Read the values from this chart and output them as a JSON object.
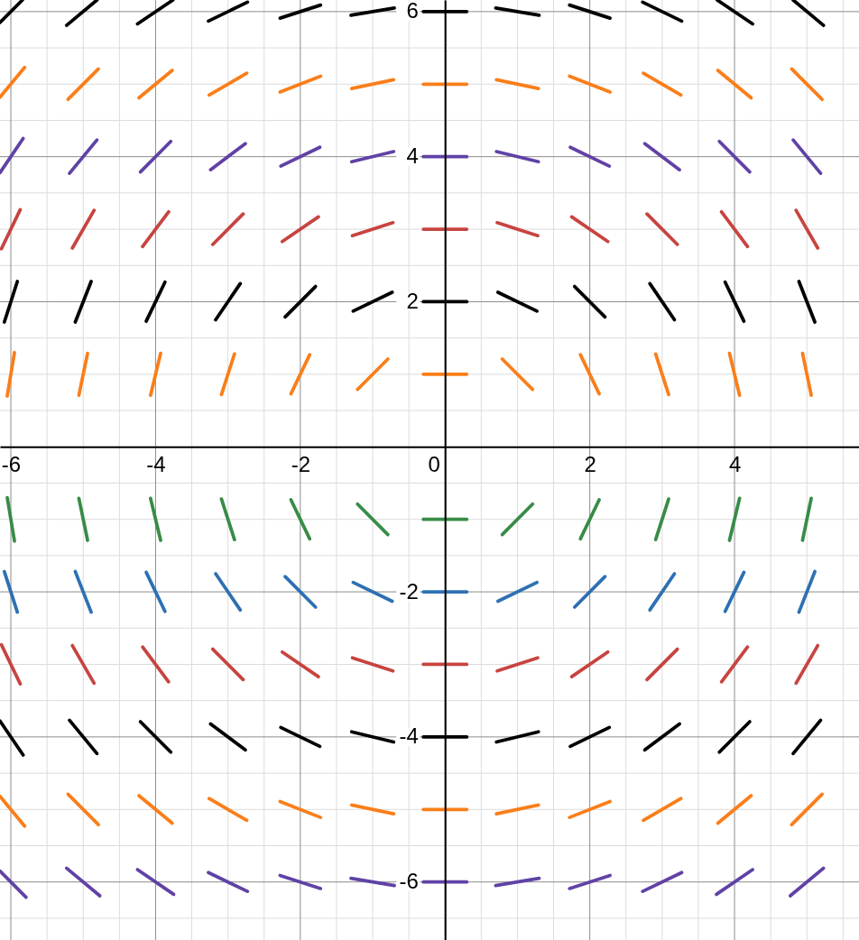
{
  "chart_data": {
    "type": "line",
    "xlim": [
      -6.15,
      5.72
    ],
    "ylim": [
      -6.8,
      6.16
    ],
    "xticks": [
      -6,
      -4,
      -2,
      0,
      2,
      4
    ],
    "yticks": [
      -6,
      -4,
      -2,
      2,
      4,
      6
    ],
    "grid": true,
    "series": [
      {
        "color": "#000000",
        "x": [
          -6.15,
          -5.84
        ],
        "values": [
          5.85,
          6.16
        ]
      },
      {
        "color": "#000000",
        "x": [
          -5.23,
          -4.81
        ],
        "values": [
          5.81,
          6.16
        ]
      },
      {
        "color": "#000000",
        "x": [
          -4.25,
          -3.76
        ],
        "values": [
          5.83,
          6.16
        ]
      },
      {
        "color": "#000000",
        "x": [
          -3.27,
          -2.73
        ],
        "values": [
          5.87,
          6.13
        ]
      },
      {
        "color": "#000000",
        "x": [
          -2.28,
          -1.72
        ],
        "values": [
          5.91,
          6.09
        ]
      },
      {
        "color": "#000000",
        "x": [
          -1.3,
          -0.7
        ],
        "values": [
          5.95,
          6.05
        ]
      },
      {
        "color": "#000000",
        "x": [
          -0.3,
          0.3
        ],
        "values": [
          6,
          6
        ]
      },
      {
        "color": "#000000",
        "x": [
          0.7,
          1.3
        ],
        "values": [
          6.05,
          5.95
        ]
      },
      {
        "color": "#000000",
        "x": [
          1.72,
          2.28
        ],
        "values": [
          6.09,
          5.91
        ]
      },
      {
        "color": "#000000",
        "x": [
          2.73,
          3.27
        ],
        "values": [
          6.13,
          5.87
        ]
      },
      {
        "color": "#000000",
        "x": [
          3.76,
          4.25
        ],
        "values": [
          6.16,
          5.83
        ]
      },
      {
        "color": "#000000",
        "x": [
          4.81,
          5.23
        ],
        "values": [
          6.16,
          5.81
        ]
      },
      {
        "color": "#fa7e19",
        "x": [
          -6.15,
          -5.81
        ],
        "values": [
          4.82,
          5.23
        ]
      },
      {
        "color": "#fa7e19",
        "x": [
          -5.21,
          -4.79
        ],
        "values": [
          4.79,
          5.21
        ]
      },
      {
        "color": "#fa7e19",
        "x": [
          -4.23,
          -3.77
        ],
        "values": [
          4.81,
          5.19
        ]
      },
      {
        "color": "#fa7e19",
        "x": [
          -3.26,
          -2.74
        ],
        "values": [
          4.85,
          5.15
        ]
      },
      {
        "color": "#fa7e19",
        "x": [
          -2.28,
          -1.72
        ],
        "values": [
          4.89,
          5.11
        ]
      },
      {
        "color": "#fa7e19",
        "x": [
          -1.29,
          -0.71
        ],
        "values": [
          4.94,
          5.06
        ]
      },
      {
        "color": "#fa7e19",
        "x": [
          -0.3,
          0.3
        ],
        "values": [
          5,
          5
        ]
      },
      {
        "color": "#fa7e19",
        "x": [
          0.71,
          1.29
        ],
        "values": [
          5.06,
          4.94
        ]
      },
      {
        "color": "#fa7e19",
        "x": [
          1.72,
          2.28
        ],
        "values": [
          5.11,
          4.89
        ]
      },
      {
        "color": "#fa7e19",
        "x": [
          2.74,
          3.26
        ],
        "values": [
          5.15,
          4.85
        ]
      },
      {
        "color": "#fa7e19",
        "x": [
          3.77,
          4.23
        ],
        "values": [
          5.19,
          4.81
        ]
      },
      {
        "color": "#fa7e19",
        "x": [
          4.79,
          5.21
        ],
        "values": [
          5.21,
          4.79
        ]
      },
      {
        "color": "#6042a6",
        "x": [
          -6.15,
          -5.83
        ],
        "values": [
          3.78,
          4.25
        ]
      },
      {
        "color": "#6042a6",
        "x": [
          -5.19,
          -4.81
        ],
        "values": [
          3.77,
          4.23
        ]
      },
      {
        "color": "#6042a6",
        "x": [
          -4.21,
          -3.79
        ],
        "values": [
          3.79,
          4.21
        ]
      },
      {
        "color": "#6042a6",
        "x": [
          -3.24,
          -2.76
        ],
        "values": [
          3.82,
          4.18
        ]
      },
      {
        "color": "#6042a6",
        "x": [
          -2.27,
          -1.73
        ],
        "values": [
          3.87,
          4.13
        ]
      },
      {
        "color": "#6042a6",
        "x": [
          -1.29,
          -0.71
        ],
        "values": [
          3.93,
          4.07
        ]
      },
      {
        "color": "#6042a6",
        "x": [
          -0.3,
          0.3
        ],
        "values": [
          4,
          4
        ]
      },
      {
        "color": "#6042a6",
        "x": [
          0.71,
          1.29
        ],
        "values": [
          4.07,
          3.93
        ]
      },
      {
        "color": "#6042a6",
        "x": [
          1.73,
          2.27
        ],
        "values": [
          4.13,
          3.87
        ]
      },
      {
        "color": "#6042a6",
        "x": [
          2.76,
          3.24
        ],
        "values": [
          4.18,
          3.82
        ]
      },
      {
        "color": "#6042a6",
        "x": [
          3.79,
          4.21
        ],
        "values": [
          4.21,
          3.79
        ]
      },
      {
        "color": "#6042a6",
        "x": [
          4.81,
          5.19
        ],
        "values": [
          4.23,
          3.77
        ]
      },
      {
        "color": "#c74440",
        "x": [
          -6.13,
          -5.87
        ],
        "values": [
          2.73,
          3.27
        ]
      },
      {
        "color": "#c74440",
        "x": [
          -5.15,
          -4.85
        ],
        "values": [
          2.74,
          3.26
        ]
      },
      {
        "color": "#c74440",
        "x": [
          -4.18,
          -3.82
        ],
        "values": [
          2.76,
          3.24
        ]
      },
      {
        "color": "#c74440",
        "x": [
          -3.21,
          -2.79
        ],
        "values": [
          2.79,
          3.21
        ]
      },
      {
        "color": "#c74440",
        "x": [
          -2.25,
          -1.75
        ],
        "values": [
          2.83,
          3.17
        ]
      },
      {
        "color": "#c74440",
        "x": [
          -1.28,
          -0.72
        ],
        "values": [
          2.91,
          3.09
        ]
      },
      {
        "color": "#c74440",
        "x": [
          -0.3,
          0.3
        ],
        "values": [
          3,
          3
        ]
      },
      {
        "color": "#c74440",
        "x": [
          0.72,
          1.28
        ],
        "values": [
          3.09,
          2.91
        ]
      },
      {
        "color": "#c74440",
        "x": [
          1.75,
          2.25
        ],
        "values": [
          3.17,
          2.83
        ]
      },
      {
        "color": "#c74440",
        "x": [
          2.79,
          3.21
        ],
        "values": [
          3.21,
          2.79
        ]
      },
      {
        "color": "#c74440",
        "x": [
          3.82,
          4.18
        ],
        "values": [
          3.24,
          2.76
        ]
      },
      {
        "color": "#c74440",
        "x": [
          4.85,
          5.15
        ],
        "values": [
          3.26,
          2.74
        ]
      },
      {
        "color": "#000000",
        "x": [
          -6.09,
          -5.91
        ],
        "values": [
          1.72,
          2.28
        ]
      },
      {
        "color": "#000000",
        "x": [
          -5.11,
          -4.89
        ],
        "values": [
          1.72,
          2.28
        ]
      },
      {
        "color": "#000000",
        "x": [
          -4.13,
          -3.87
        ],
        "values": [
          1.73,
          2.27
        ]
      },
      {
        "color": "#000000",
        "x": [
          -3.17,
          -2.83
        ],
        "values": [
          1.75,
          2.25
        ]
      },
      {
        "color": "#000000",
        "x": [
          -2.21,
          -1.79
        ],
        "values": [
          1.79,
          2.21
        ]
      },
      {
        "color": "#000000",
        "x": [
          -1.27,
          -0.73
        ],
        "values": [
          1.87,
          2.13
        ]
      },
      {
        "color": "#000000",
        "x": [
          -0.3,
          0.3
        ],
        "values": [
          2,
          2
        ]
      },
      {
        "color": "#000000",
        "x": [
          0.73,
          1.27
        ],
        "values": [
          2.13,
          1.87
        ]
      },
      {
        "color": "#000000",
        "x": [
          1.79,
          2.21
        ],
        "values": [
          2.21,
          1.79
        ]
      },
      {
        "color": "#000000",
        "x": [
          2.83,
          3.17
        ],
        "values": [
          2.25,
          1.75
        ]
      },
      {
        "color": "#000000",
        "x": [
          3.87,
          4.13
        ],
        "values": [
          2.27,
          1.73
        ]
      },
      {
        "color": "#000000",
        "x": [
          4.89,
          5.11
        ],
        "values": [
          2.28,
          1.72
        ]
      },
      {
        "color": "#fa7e19",
        "x": [
          -6.05,
          -5.95
        ],
        "values": [
          0.7,
          1.3
        ]
      },
      {
        "color": "#fa7e19",
        "x": [
          -5.06,
          -4.94
        ],
        "values": [
          0.71,
          1.29
        ]
      },
      {
        "color": "#fa7e19",
        "x": [
          -4.07,
          -3.93
        ],
        "values": [
          0.71,
          1.29
        ]
      },
      {
        "color": "#fa7e19",
        "x": [
          -3.09,
          -2.91
        ],
        "values": [
          0.72,
          1.28
        ]
      },
      {
        "color": "#fa7e19",
        "x": [
          -2.13,
          -1.87
        ],
        "values": [
          0.73,
          1.27
        ]
      },
      {
        "color": "#fa7e19",
        "x": [
          -1.21,
          -0.79
        ],
        "values": [
          0.79,
          1.21
        ]
      },
      {
        "color": "#fa7e19",
        "x": [
          -0.3,
          0.3
        ],
        "values": [
          1,
          1
        ]
      },
      {
        "color": "#fa7e19",
        "x": [
          0.79,
          1.21
        ],
        "values": [
          1.21,
          0.79
        ]
      },
      {
        "color": "#fa7e19",
        "x": [
          1.87,
          2.13
        ],
        "values": [
          1.27,
          0.73
        ]
      },
      {
        "color": "#fa7e19",
        "x": [
          2.91,
          3.09
        ],
        "values": [
          1.28,
          0.72
        ]
      },
      {
        "color": "#fa7e19",
        "x": [
          3.93,
          4.07
        ],
        "values": [
          1.29,
          0.71
        ]
      },
      {
        "color": "#fa7e19",
        "x": [
          4.94,
          5.06
        ],
        "values": [
          1.29,
          0.71
        ]
      },
      {
        "color": "#388c46",
        "x": [
          -6.05,
          -5.95
        ],
        "values": [
          -0.7,
          -1.3
        ]
      },
      {
        "color": "#388c46",
        "x": [
          -5.06,
          -4.94
        ],
        "values": [
          -0.71,
          -1.29
        ]
      },
      {
        "color": "#388c46",
        "x": [
          -4.07,
          -3.93
        ],
        "values": [
          -0.71,
          -1.29
        ]
      },
      {
        "color": "#388c46",
        "x": [
          -3.09,
          -2.91
        ],
        "values": [
          -0.72,
          -1.28
        ]
      },
      {
        "color": "#388c46",
        "x": [
          -2.13,
          -1.87
        ],
        "values": [
          -0.73,
          -1.27
        ]
      },
      {
        "color": "#388c46",
        "x": [
          -1.21,
          -0.79
        ],
        "values": [
          -0.79,
          -1.21
        ]
      },
      {
        "color": "#388c46",
        "x": [
          -0.3,
          0.3
        ],
        "values": [
          -1,
          -1
        ]
      },
      {
        "color": "#388c46",
        "x": [
          0.79,
          1.21
        ],
        "values": [
          -1.21,
          -0.79
        ]
      },
      {
        "color": "#388c46",
        "x": [
          1.87,
          2.13
        ],
        "values": [
          -1.27,
          -0.73
        ]
      },
      {
        "color": "#388c46",
        "x": [
          2.91,
          3.09
        ],
        "values": [
          -1.28,
          -0.72
        ]
      },
      {
        "color": "#388c46",
        "x": [
          3.93,
          4.07
        ],
        "values": [
          -1.29,
          -0.71
        ]
      },
      {
        "color": "#388c46",
        "x": [
          4.94,
          5.06
        ],
        "values": [
          -1.29,
          -0.71
        ]
      },
      {
        "color": "#2d70b3",
        "x": [
          -6.09,
          -5.91
        ],
        "values": [
          -1.72,
          -2.28
        ]
      },
      {
        "color": "#2d70b3",
        "x": [
          -5.11,
          -4.89
        ],
        "values": [
          -1.72,
          -2.28
        ]
      },
      {
        "color": "#2d70b3",
        "x": [
          -4.13,
          -3.87
        ],
        "values": [
          -1.73,
          -2.27
        ]
      },
      {
        "color": "#2d70b3",
        "x": [
          -3.17,
          -2.83
        ],
        "values": [
          -1.75,
          -2.25
        ]
      },
      {
        "color": "#2d70b3",
        "x": [
          -2.21,
          -1.79
        ],
        "values": [
          -1.79,
          -2.21
        ]
      },
      {
        "color": "#2d70b3",
        "x": [
          -1.27,
          -0.73
        ],
        "values": [
          -1.87,
          -2.13
        ]
      },
      {
        "color": "#2d70b3",
        "x": [
          -0.3,
          0.3
        ],
        "values": [
          -2,
          -2
        ]
      },
      {
        "color": "#2d70b3",
        "x": [
          0.73,
          1.27
        ],
        "values": [
          -2.13,
          -1.87
        ]
      },
      {
        "color": "#2d70b3",
        "x": [
          1.79,
          2.21
        ],
        "values": [
          -2.21,
          -1.79
        ]
      },
      {
        "color": "#2d70b3",
        "x": [
          2.83,
          3.17
        ],
        "values": [
          -2.25,
          -1.75
        ]
      },
      {
        "color": "#2d70b3",
        "x": [
          3.87,
          4.13
        ],
        "values": [
          -2.27,
          -1.73
        ]
      },
      {
        "color": "#2d70b3",
        "x": [
          4.89,
          5.11
        ],
        "values": [
          -2.28,
          -1.72
        ]
      },
      {
        "color": "#c74440",
        "x": [
          -6.13,
          -5.87
        ],
        "values": [
          -2.73,
          -3.27
        ]
      },
      {
        "color": "#c74440",
        "x": [
          -5.15,
          -4.85
        ],
        "values": [
          -2.74,
          -3.26
        ]
      },
      {
        "color": "#c74440",
        "x": [
          -4.18,
          -3.82
        ],
        "values": [
          -2.76,
          -3.24
        ]
      },
      {
        "color": "#c74440",
        "x": [
          -3.21,
          -2.79
        ],
        "values": [
          -2.79,
          -3.21
        ]
      },
      {
        "color": "#c74440",
        "x": [
          -2.25,
          -1.75
        ],
        "values": [
          -2.83,
          -3.17
        ]
      },
      {
        "color": "#c74440",
        "x": [
          -1.28,
          -0.72
        ],
        "values": [
          -2.91,
          -3.09
        ]
      },
      {
        "color": "#c74440",
        "x": [
          -0.3,
          0.3
        ],
        "values": [
          -3,
          -3
        ]
      },
      {
        "color": "#c74440",
        "x": [
          0.72,
          1.28
        ],
        "values": [
          -3.09,
          -2.91
        ]
      },
      {
        "color": "#c74440",
        "x": [
          1.75,
          2.25
        ],
        "values": [
          -3.17,
          -2.83
        ]
      },
      {
        "color": "#c74440",
        "x": [
          2.79,
          3.21
        ],
        "values": [
          -3.21,
          -2.79
        ]
      },
      {
        "color": "#c74440",
        "x": [
          3.82,
          4.18
        ],
        "values": [
          -3.24,
          -2.76
        ]
      },
      {
        "color": "#c74440",
        "x": [
          4.85,
          5.15
        ],
        "values": [
          -3.26,
          -2.74
        ]
      },
      {
        "color": "#000000",
        "x": [
          -6.15,
          -5.83
        ],
        "values": [
          -3.78,
          -4.25
        ]
      },
      {
        "color": "#000000",
        "x": [
          -5.19,
          -4.81
        ],
        "values": [
          -3.77,
          -4.23
        ]
      },
      {
        "color": "#000000",
        "x": [
          -4.21,
          -3.79
        ],
        "values": [
          -3.79,
          -4.21
        ]
      },
      {
        "color": "#000000",
        "x": [
          -3.24,
          -2.76
        ],
        "values": [
          -3.82,
          -4.18
        ]
      },
      {
        "color": "#000000",
        "x": [
          -2.27,
          -1.73
        ],
        "values": [
          -3.87,
          -4.13
        ]
      },
      {
        "color": "#000000",
        "x": [
          -1.29,
          -0.71
        ],
        "values": [
          -3.93,
          -4.07
        ]
      },
      {
        "color": "#000000",
        "x": [
          -0.3,
          0.3
        ],
        "values": [
          -4,
          -4
        ]
      },
      {
        "color": "#000000",
        "x": [
          0.71,
          1.29
        ],
        "values": [
          -4.07,
          -3.93
        ]
      },
      {
        "color": "#000000",
        "x": [
          1.73,
          2.27
        ],
        "values": [
          -4.13,
          -3.87
        ]
      },
      {
        "color": "#000000",
        "x": [
          2.76,
          3.24
        ],
        "values": [
          -4.18,
          -3.82
        ]
      },
      {
        "color": "#000000",
        "x": [
          3.79,
          4.21
        ],
        "values": [
          -4.21,
          -3.79
        ]
      },
      {
        "color": "#000000",
        "x": [
          4.81,
          5.19
        ],
        "values": [
          -4.23,
          -3.77
        ]
      },
      {
        "color": "#fa7e19",
        "x": [
          -6.15,
          -5.81
        ],
        "values": [
          -4.82,
          -5.23
        ]
      },
      {
        "color": "#fa7e19",
        "x": [
          -5.21,
          -4.79
        ],
        "values": [
          -4.79,
          -5.21
        ]
      },
      {
        "color": "#fa7e19",
        "x": [
          -4.23,
          -3.77
        ],
        "values": [
          -4.81,
          -5.19
        ]
      },
      {
        "color": "#fa7e19",
        "x": [
          -3.26,
          -2.74
        ],
        "values": [
          -4.85,
          -5.15
        ]
      },
      {
        "color": "#fa7e19",
        "x": [
          -2.28,
          -1.72
        ],
        "values": [
          -4.89,
          -5.11
        ]
      },
      {
        "color": "#fa7e19",
        "x": [
          -1.29,
          -0.71
        ],
        "values": [
          -4.94,
          -5.06
        ]
      },
      {
        "color": "#fa7e19",
        "x": [
          -0.3,
          0.3
        ],
        "values": [
          -5,
          -5
        ]
      },
      {
        "color": "#fa7e19",
        "x": [
          0.71,
          1.29
        ],
        "values": [
          -5.06,
          -4.94
        ]
      },
      {
        "color": "#fa7e19",
        "x": [
          1.72,
          2.28
        ],
        "values": [
          -5.11,
          -4.89
        ]
      },
      {
        "color": "#fa7e19",
        "x": [
          2.74,
          3.26
        ],
        "values": [
          -5.15,
          -4.85
        ]
      },
      {
        "color": "#fa7e19",
        "x": [
          3.77,
          4.23
        ],
        "values": [
          -5.19,
          -4.81
        ]
      },
      {
        "color": "#fa7e19",
        "x": [
          4.79,
          5.21
        ],
        "values": [
          -5.21,
          -4.79
        ]
      },
      {
        "color": "#6042a6",
        "x": [
          -6.15,
          -5.79
        ],
        "values": [
          -5.85,
          -6.21
        ]
      },
      {
        "color": "#6042a6",
        "x": [
          -5.23,
          -4.77
        ],
        "values": [
          -5.81,
          -6.19
        ]
      },
      {
        "color": "#6042a6",
        "x": [
          -4.25,
          -3.75
        ],
        "values": [
          -5.83,
          -6.17
        ]
      },
      {
        "color": "#6042a6",
        "x": [
          -3.27,
          -2.73
        ],
        "values": [
          -5.87,
          -6.13
        ]
      },
      {
        "color": "#6042a6",
        "x": [
          -2.28,
          -1.72
        ],
        "values": [
          -5.91,
          -6.09
        ]
      },
      {
        "color": "#6042a6",
        "x": [
          -1.3,
          -0.7
        ],
        "values": [
          -5.95,
          -6.05
        ]
      },
      {
        "color": "#6042a6",
        "x": [
          -0.3,
          0.3
        ],
        "values": [
          -6,
          -6
        ]
      },
      {
        "color": "#6042a6",
        "x": [
          0.7,
          1.3
        ],
        "values": [
          -6.05,
          -5.95
        ]
      },
      {
        "color": "#6042a6",
        "x": [
          1.72,
          2.28
        ],
        "values": [
          -6.09,
          -5.91
        ]
      },
      {
        "color": "#6042a6",
        "x": [
          2.73,
          3.27
        ],
        "values": [
          -6.13,
          -5.87
        ]
      },
      {
        "color": "#6042a6",
        "x": [
          3.75,
          4.25
        ],
        "values": [
          -6.17,
          -5.83
        ]
      },
      {
        "color": "#6042a6",
        "x": [
          4.77,
          5.23
        ],
        "values": [
          -6.19,
          -5.81
        ]
      }
    ]
  }
}
